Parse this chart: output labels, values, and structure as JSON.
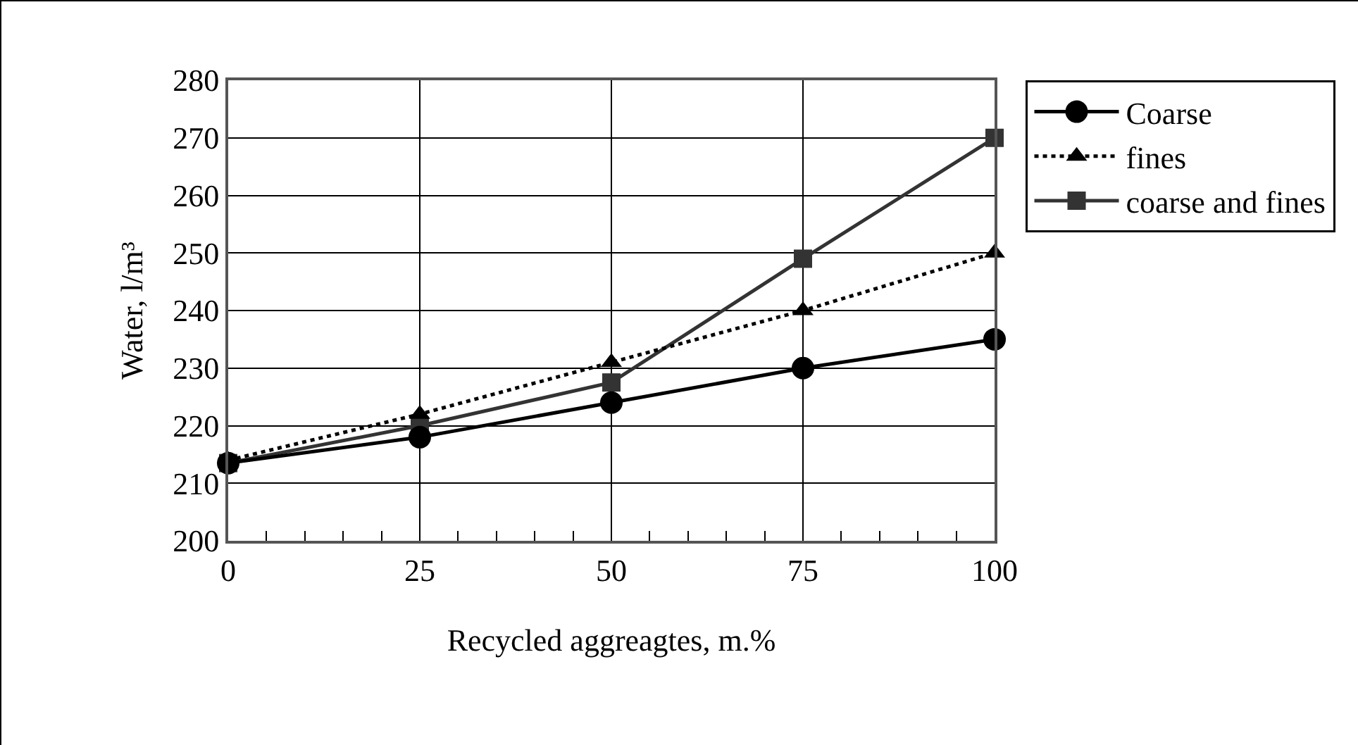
{
  "chart_data": {
    "type": "line",
    "xlabel": "Recycled aggreagtes, m.%",
    "ylabel": "Water, l/m³",
    "x": [
      0,
      25,
      50,
      75,
      100
    ],
    "series": [
      {
        "name": "Coarse",
        "color": "#000000",
        "marker": "circle",
        "line_style": "solid",
        "values": [
          213.5,
          218,
          224,
          230,
          235
        ]
      },
      {
        "name": "fines",
        "color": "#000000",
        "marker": "triangle",
        "line_style": "dotted",
        "values": [
          214,
          222,
          231,
          240,
          250
        ]
      },
      {
        "name": "coarse and fines",
        "color": "#333333",
        "marker": "square",
        "line_style": "solid",
        "values": [
          213.5,
          220,
          227.5,
          249,
          270
        ]
      }
    ],
    "xlim": [
      0,
      100
    ],
    "xticks": [
      0,
      25,
      50,
      75,
      100
    ],
    "ylim": [
      200,
      280
    ],
    "yticks": [
      200,
      210,
      220,
      230,
      240,
      250,
      260,
      270,
      280
    ],
    "grid": true,
    "legend": "top right"
  }
}
